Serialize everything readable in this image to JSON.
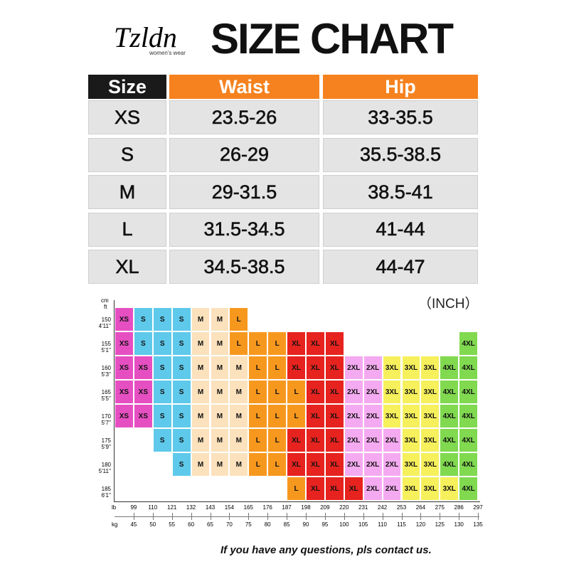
{
  "header": {
    "brand": "Tzldn",
    "brand_sub": "women's wear",
    "title": "SIZE CHART"
  },
  "table": {
    "headers": [
      "Size",
      "Waist",
      "Hip"
    ],
    "rows": [
      [
        "XS",
        "23.5-26",
        "33-35.5"
      ],
      [
        "S",
        "26-29",
        "35.5-38.5"
      ],
      [
        "M",
        "29-31.5",
        "38.5-41"
      ],
      [
        "L",
        "31.5-34.5",
        "41-44"
      ],
      [
        "XL",
        "34.5-38.5",
        "44-47"
      ]
    ]
  },
  "unit": "（INCH）",
  "grid": {
    "y_unit_top": "cm",
    "y_unit_bottom": "ft",
    "x_unit_top": "lb",
    "x_unit_bottom": "kg",
    "cm": [
      "150",
      "155",
      "160",
      "165",
      "170",
      "175",
      "180",
      "185"
    ],
    "ft": [
      "4'11''",
      "5'1''",
      "5'3''",
      "5'5''",
      "5'7''",
      "5'9''",
      "5'11''",
      "6'1''"
    ],
    "lb": [
      "99",
      "110",
      "121",
      "132",
      "143",
      "154",
      "165",
      "176",
      "187",
      "198",
      "209",
      "220",
      "231",
      "242",
      "253",
      "264",
      "275",
      "286",
      "297"
    ],
    "kg": [
      "45",
      "50",
      "55",
      "60",
      "65",
      "70",
      "75",
      "80",
      "85",
      "90",
      "95",
      "100",
      "105",
      "110",
      "115",
      "120",
      "125",
      "130",
      "135"
    ],
    "size_colors": {
      "XS": "#e64fc2",
      "S": "#5ec9ea",
      "M": "#fbe1bc",
      "L": "#f7981e",
      "XL": "#e7231f",
      "2XL": "#f4aaf0",
      "3XL": "#f6f05c",
      "4XL": "#80d94f"
    },
    "rows": [
      [
        "XS",
        "S",
        "S",
        "S",
        "M",
        "M",
        "L",
        null,
        null,
        null,
        null,
        null,
        null,
        null,
        null,
        null,
        null,
        null,
        null
      ],
      [
        "XS",
        "S",
        "S",
        "S",
        "M",
        "M",
        "L",
        "L",
        "L",
        "XL",
        "XL",
        "XL",
        null,
        null,
        null,
        null,
        null,
        null,
        "4XL"
      ],
      [
        "XS",
        "XS",
        "S",
        "S",
        "M",
        "M",
        "M",
        "L",
        "L",
        "XL",
        "XL",
        "XL",
        "2XL",
        "2XL",
        "3XL",
        "3XL",
        "3XL",
        "4XL",
        "4XL"
      ],
      [
        "XS",
        "XS",
        "S",
        "S",
        "M",
        "M",
        "M",
        "L",
        "L",
        "L",
        "XL",
        "XL",
        "2XL",
        "2XL",
        "3XL",
        "3XL",
        "3XL",
        "4XL",
        "4XL"
      ],
      [
        "XS",
        "XS",
        "S",
        "S",
        "M",
        "M",
        "M",
        "L",
        "L",
        "L",
        "XL",
        "XL",
        "2XL",
        "2XL",
        "3XL",
        "3XL",
        "3XL",
        "4XL",
        "4XL"
      ],
      [
        null,
        null,
        "S",
        "S",
        "M",
        "M",
        "M",
        "L",
        "L",
        "XL",
        "XL",
        "XL",
        "2XL",
        "2XL",
        "2XL",
        "3XL",
        "3XL",
        "4XL",
        "4XL"
      ],
      [
        null,
        null,
        null,
        "S",
        "M",
        "M",
        "M",
        "L",
        "L",
        "XL",
        "XL",
        "XL",
        "2XL",
        "2XL",
        "2XL",
        "3XL",
        "3XL",
        "4XL",
        "4XL"
      ],
      [
        null,
        null,
        null,
        null,
        null,
        null,
        null,
        null,
        null,
        "L",
        "XL",
        "XL",
        "XL",
        "2XL",
        "2XL",
        "3XL",
        "3XL",
        "3XL",
        "4XL"
      ]
    ]
  },
  "footer": "If you have any questions, pls contact us."
}
